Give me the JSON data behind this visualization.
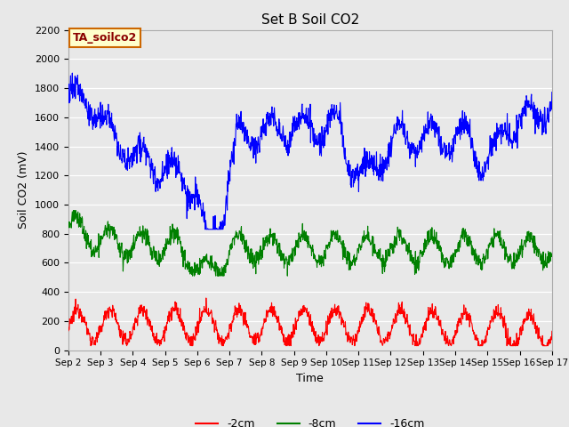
{
  "title": "Set B Soil CO2",
  "ylabel": "Soil CO2 (mV)",
  "xlabel": "Time",
  "ylim": [
    0,
    2200
  ],
  "yticks": [
    0,
    200,
    400,
    600,
    800,
    1000,
    1200,
    1400,
    1600,
    1800,
    2000,
    2200
  ],
  "xtick_labels": [
    "Sep 2",
    "Sep 3",
    "Sep 4",
    "Sep 5",
    "Sep 6",
    "Sep 7",
    "Sep 8",
    "Sep 9",
    "Sep 10",
    "Sep 11",
    "Sep 12",
    "Sep 13",
    "Sep 14",
    "Sep 15",
    "Sep 16",
    "Sep 17"
  ],
  "legend_labels": [
    "-2cm",
    "-8cm",
    "-16cm"
  ],
  "annotation_text": "TA_soilco2",
  "annotation_bg": "#ffffcc",
  "annotation_border": "#cc6600",
  "bg_color": "#e8e8e8",
  "grid_color": "white",
  "line_red": "red",
  "line_green": "green",
  "line_blue": "blue"
}
